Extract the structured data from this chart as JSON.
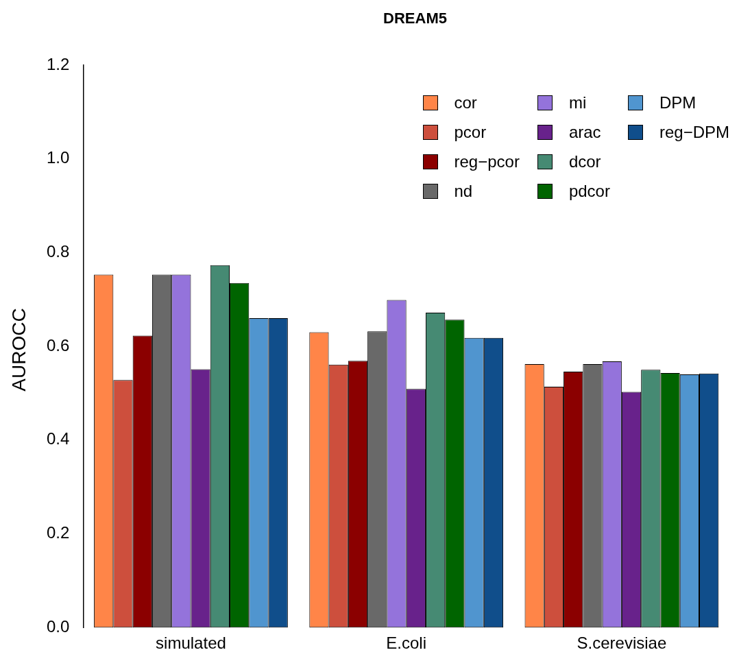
{
  "chart_data": {
    "type": "bar",
    "title": "DREAM5",
    "ylabel": "AUROCC",
    "categories": [
      "simulated",
      "E.coli",
      "S.cerevisiae"
    ],
    "series": [
      {
        "name": "cor",
        "color": "#ff8548",
        "values": [
          0.753,
          0.63,
          0.562
        ]
      },
      {
        "name": "pcor",
        "color": "#cd4f3d",
        "values": [
          0.528,
          0.561,
          0.514
        ]
      },
      {
        "name": "reg−pcor",
        "color": "#8b0000",
        "values": [
          0.623,
          0.569,
          0.546
        ]
      },
      {
        "name": "nd",
        "color": "#696969",
        "values": [
          0.753,
          0.632,
          0.562
        ]
      },
      {
        "name": "mi",
        "color": "#9473db",
        "values": [
          0.753,
          0.699,
          0.568
        ]
      },
      {
        "name": "arac",
        "color": "#68228b",
        "values": [
          0.551,
          0.509,
          0.503
        ]
      },
      {
        "name": "dcor",
        "color": "#468a73",
        "values": [
          0.773,
          0.672,
          0.55
        ]
      },
      {
        "name": "pdcor",
        "color": "#006400",
        "values": [
          0.735,
          0.657,
          0.543
        ]
      },
      {
        "name": "DPM",
        "color": "#5095cf",
        "values": [
          0.66,
          0.618,
          0.54
        ]
      },
      {
        "name": "reg−DPM",
        "color": "#104e8b",
        "values": [
          0.66,
          0.618,
          0.542
        ]
      }
    ],
    "ylim": [
      0,
      1.2
    ],
    "yticks": [
      {
        "value": 0,
        "label": "0.0"
      },
      {
        "value": 0.2,
        "label": "0.2"
      },
      {
        "value": 0.4,
        "label": "0.4"
      },
      {
        "value": 0.6,
        "label": "0.6"
      },
      {
        "value": 0.8,
        "label": "0.8"
      },
      {
        "value": 1.0,
        "label": "1.0"
      },
      {
        "value": 1.2,
        "label": "1.2"
      }
    ],
    "grid": false,
    "legend": "top right"
  }
}
